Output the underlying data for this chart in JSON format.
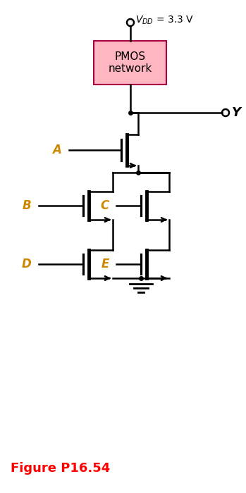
{
  "title": "Figure P16.54",
  "title_color": "#FF0000",
  "pmos_box_color": "#FFB6C1",
  "pmos_box_edge": "#AA0044",
  "pmos_text": "PMOS\nnetwork",
  "output_label": "Y",
  "label_color": "#CC8800",
  "vdd_text": "$V_{DD}$ = 3.3 V",
  "label_fontsize": 12,
  "lw": 1.8,
  "lw_thick": 3.5
}
